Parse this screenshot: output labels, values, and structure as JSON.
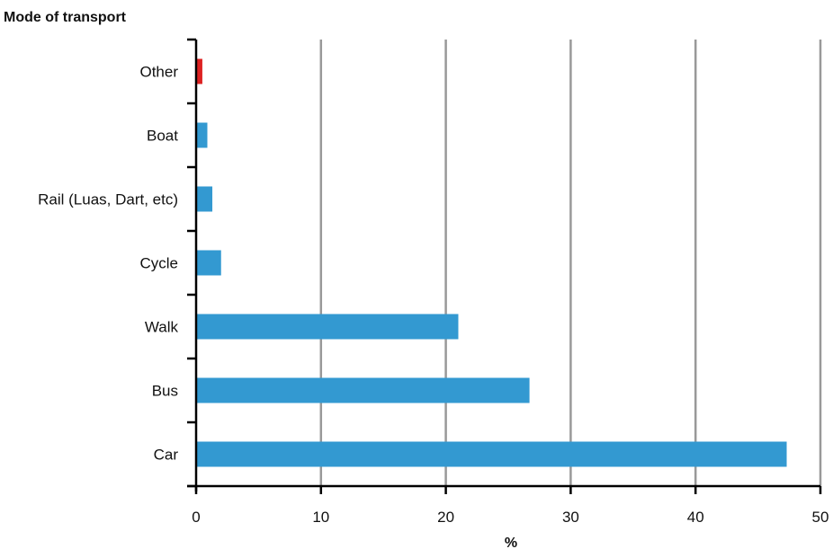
{
  "chart_data": {
    "type": "bar",
    "orientation": "horizontal",
    "title": "",
    "ylabel": "Mode of transport",
    "xlabel": "%",
    "categories": [
      "Car",
      "Bus",
      "Walk",
      "Cycle",
      "Rail (Luas, Dart, etc)",
      "Boat",
      "Other"
    ],
    "values": [
      47.3,
      26.7,
      21.0,
      2.0,
      1.3,
      0.9,
      0.5
    ],
    "bar_colors": [
      "#3399d1",
      "#3399d1",
      "#3399d1",
      "#3399d1",
      "#3399d1",
      "#3399d1",
      "#dd2222"
    ],
    "xlim": [
      0,
      50
    ],
    "xticks": [
      0,
      10,
      20,
      30,
      40,
      50
    ],
    "xtick_labels": [
      "0",
      "10",
      "20",
      "30",
      "40",
      "50"
    ],
    "grid": "vertical",
    "grid_color": "#999999",
    "legend": "none"
  }
}
